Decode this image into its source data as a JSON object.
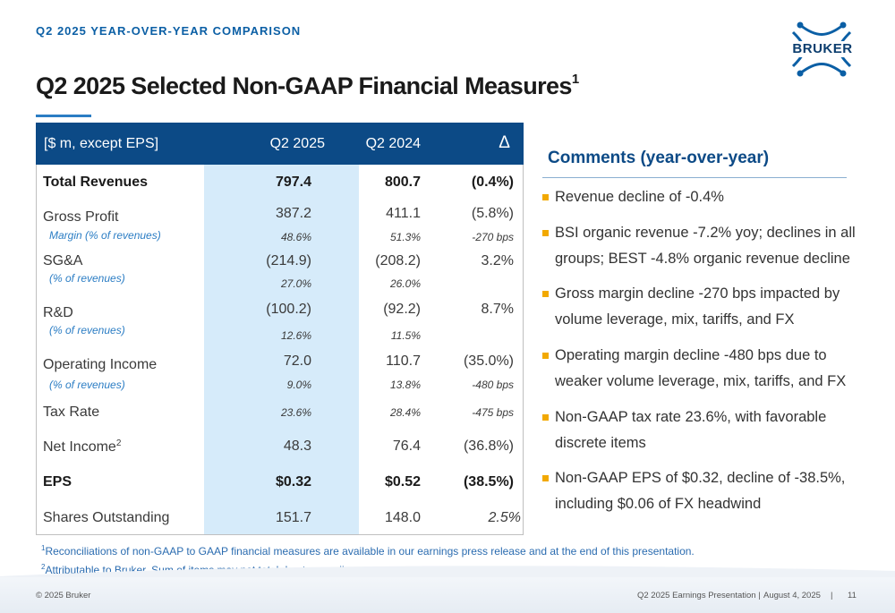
{
  "header": {
    "kicker": "Q2 2025 YEAR-OVER-YEAR COMPARISON",
    "title": "Q2 2025 Selected Non-GAAP Financial Measures",
    "title_superscript": "1",
    "logo_text": "BRUKER",
    "accent_color": "#0c4a86"
  },
  "table": {
    "columns": [
      "[$ m, except EPS]",
      "Q2 2025",
      "Q2 2024",
      "Δ"
    ],
    "rows": {
      "total_revenues": {
        "label": "Total Revenues",
        "q2_2025": "797.4",
        "q2_2024": "800.7",
        "delta": "(0.4%)"
      },
      "gross_profit": {
        "label": "Gross Profit",
        "q2_2025": "387.2",
        "q2_2024": "411.1",
        "delta": "(5.8%)",
        "sub_label": "Margin (% of revenues)",
        "sub_2025": "48.6%",
        "sub_2024": "51.3%",
        "sub_delta": "-270 bps"
      },
      "sga": {
        "label": "SG&A",
        "q2_2025": "(214.9)",
        "q2_2024": "(208.2)",
        "delta": "3.2%",
        "sub_label": "(% of revenues)",
        "sub_2025": "27.0%",
        "sub_2024": "26.0%"
      },
      "rd": {
        "label": "R&D",
        "q2_2025": "(100.2)",
        "q2_2024": "(92.2)",
        "delta": "8.7%",
        "sub_label": "(% of revenues)",
        "sub_2025": "12.6%",
        "sub_2024": "11.5%"
      },
      "operating_income": {
        "label": "Operating Income",
        "q2_2025": "72.0",
        "q2_2024": "110.7",
        "delta": "(35.0%)",
        "sub_label": "(% of revenues)",
        "sub_2025": "9.0%",
        "sub_2024": "13.8%",
        "sub_delta": "-480 bps"
      },
      "tax_rate": {
        "label": "Tax Rate",
        "q2_2025": "23.6%",
        "q2_2024": "28.4%",
        "delta": "-475 bps"
      },
      "net_income": {
        "label": "Net Income",
        "label_superscript": "2",
        "q2_2025": "48.3",
        "q2_2024": "76.4",
        "delta": "(36.8%)"
      },
      "eps": {
        "label": "EPS",
        "q2_2025": "$0.32",
        "q2_2024": "$0.52",
        "delta": "(38.5%)"
      },
      "shares_outstanding": {
        "label": "Shares Outstanding",
        "q2_2025": "151.7",
        "q2_2024": "148.0",
        "delta": "2.5%"
      }
    }
  },
  "comments": {
    "title": "Comments (year-over-year)",
    "bullets": [
      "Revenue decline of -0.4%",
      "BSI organic revenue -7.2% yoy; declines in all groups; BEST -4.8% organic revenue decline",
      "Gross margin decline -270 bps impacted by volume leverage, mix, tariffs, and FX",
      "Operating margin decline -480 bps due to weaker volume leverage, mix, tariffs, and FX",
      "Non-GAAP tax rate 23.6%, with favorable discrete items",
      "Non-GAAP EPS of $0.32, decline of -38.5%, including $0.06 of FX headwind"
    ],
    "bullet_color": "#f2a900"
  },
  "footnotes": {
    "fn1_marker": "1",
    "fn1": "Reconciliations of non-GAAP to GAAP financial measures are available in our earnings press release and at the end of this presentation.",
    "fn2_marker": "2",
    "fn2": "Attributable to Bruker, Sum of items may not total due to rounding"
  },
  "footer": {
    "copyright": "© 2025 Bruker",
    "presentation": "Q2 2025 Earnings Presentation |",
    "date": "August 4, 2025",
    "separator": "|",
    "page_number": "11"
  }
}
